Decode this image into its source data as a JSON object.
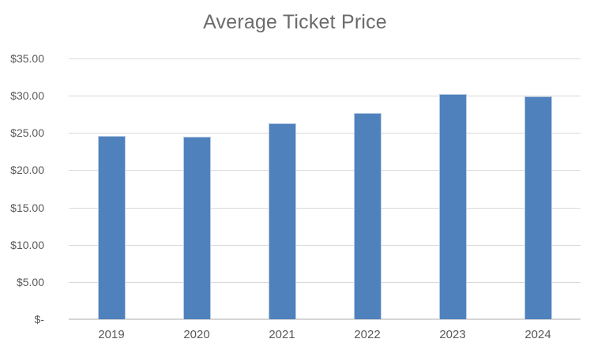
{
  "chart_data": {
    "type": "bar",
    "title": "Average Ticket Price",
    "categories": [
      "2019",
      "2020",
      "2021",
      "2022",
      "2023",
      "2024"
    ],
    "values": [
      24.6,
      24.5,
      26.3,
      27.7,
      30.2,
      29.9
    ],
    "xlabel": "",
    "ylabel": "",
    "ylim": [
      0,
      35
    ],
    "y_tick_interval": 5,
    "y_tick_labels": [
      "$35.00",
      "$30.00",
      "$25.00",
      "$20.00",
      "$15.00",
      "$10.00",
      "$5.00",
      "$-"
    ],
    "y_tick_values": [
      35,
      30,
      25,
      20,
      15,
      10,
      5,
      0
    ],
    "grid": true,
    "legend": false,
    "colors": {
      "bar": "#4f81bd",
      "bar_border": "#b9cde4",
      "gridline": "#d9d9d9",
      "axis_line": "#d6d6d6",
      "title_text": "#6b6b6b",
      "tick_text": "#595959",
      "background": "#ffffff"
    }
  }
}
